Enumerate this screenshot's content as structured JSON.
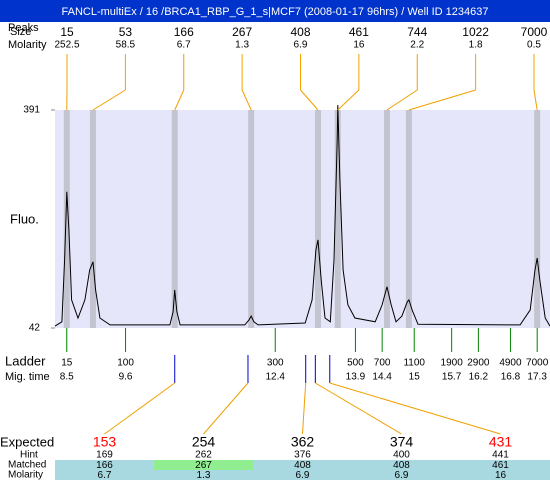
{
  "header": {
    "title": "FANCL-multiEx / 16 /BRCA1_RBP_G_1_s|MCF7 (2008-01-17 96hrs) / Well ID 1234637"
  },
  "peak_table": {
    "peaks_label": "Peaks",
    "size_label": "Size",
    "molarity_label": "Molarity",
    "size": [
      15,
      53,
      166,
      267,
      408,
      461,
      744,
      1022,
      7000
    ],
    "molarity": [
      252.5,
      58.5,
      6.7,
      1.3,
      6.9,
      16,
      2.2,
      1.8,
      0.5
    ]
  },
  "chart_data": {
    "type": "line",
    "y_label": "Fluo.",
    "color": "#000000",
    "background": "#e6e6fa",
    "band_color": "#c4c4d0",
    "xlim": [
      8.28,
      17.54
    ],
    "ylim": [
      42,
      391
    ],
    "yticks": [
      42,
      391
    ],
    "peak_times": [
      8.5,
      8.99,
      10.52,
      11.95,
      13.2,
      13.57,
      14.49,
      14.9,
      17.3
    ],
    "x": [
      8.28,
      8.41,
      8.46,
      8.5,
      8.54,
      8.59,
      8.71,
      8.84,
      8.93,
      8.99,
      9.04,
      9.12,
      9.31,
      10.43,
      10.49,
      10.52,
      10.56,
      10.62,
      11.83,
      11.91,
      11.95,
      12.0,
      12.08,
      12.96,
      13.09,
      13.16,
      13.2,
      13.26,
      13.33,
      13.43,
      13.5,
      13.56,
      13.57,
      13.61,
      13.67,
      13.76,
      13.89,
      14.27,
      14.4,
      14.49,
      14.57,
      14.66,
      14.77,
      14.87,
      14.9,
      14.96,
      15.07,
      16.98,
      17.17,
      17.26,
      17.3,
      17.35,
      17.45,
      17.54
    ],
    "values": [
      45,
      52,
      151,
      260,
      199,
      87,
      58,
      87,
      135,
      148,
      103,
      58,
      47,
      47,
      68,
      103,
      68,
      47,
      47,
      55,
      61,
      52,
      47,
      50,
      87,
      167,
      183,
      119,
      58,
      52,
      151,
      343,
      399,
      279,
      135,
      79,
      58,
      52,
      79,
      108,
      79,
      52,
      61,
      84,
      87,
      71,
      48,
      47,
      71,
      135,
      154,
      119,
      58,
      45
    ]
  },
  "ladder": {
    "label": "Ladder",
    "time_label": "Mig. time",
    "color": "#008000",
    "sizes": [
      15,
      100,
      300,
      500,
      700,
      1100,
      1900,
      2900,
      4900,
      7000
    ],
    "mig_times": [
      8.5,
      9.6,
      12.4,
      13.9,
      14.4,
      15,
      15.7,
      16.2,
      16.8,
      17.3
    ]
  },
  "expected": {
    "label": "Expected",
    "hint_label": "Hint",
    "matched_label": "Matched",
    "molarity_label": "Molarity",
    "values": [
      153,
      254,
      362,
      374,
      431
    ],
    "hint": [
      169,
      262,
      376,
      400,
      441
    ],
    "matched": [
      166,
      267,
      408,
      408,
      461
    ],
    "molarity": [
      6.7,
      1.3,
      6.9,
      6.9,
      16
    ],
    "mig_times": [
      10.52,
      11.89,
      12.97,
      13.15,
      13.42
    ],
    "mark_color": "#0000cc",
    "flagged": [
      true,
      false,
      false,
      false,
      true
    ],
    "flag_color": "#ff0000",
    "matched_colors": [
      "#a8d8e0",
      "#90ee90",
      "#a8d8e0",
      "#a8d8e0",
      "#a8d8e0"
    ],
    "molarity_color": "#a8d8e0"
  }
}
